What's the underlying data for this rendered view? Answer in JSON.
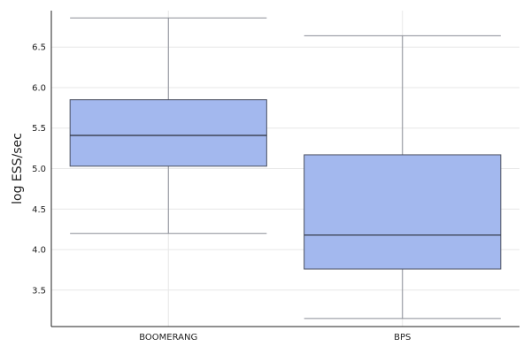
{
  "chart_data": {
    "type": "box",
    "ylabel": "log ESS/sec",
    "xlabel": "",
    "ylim": [
      3.05,
      6.95
    ],
    "yticks": [
      3.5,
      4.0,
      4.5,
      5.0,
      5.5,
      6.0,
      6.5
    ],
    "ytick_labels": [
      "3.5",
      "4.0",
      "4.5",
      "5.0",
      "5.5",
      "6.0",
      "6.5"
    ],
    "grid": true,
    "legend": "none",
    "categories": [
      "BOOMERANG",
      "BPS"
    ],
    "boxes": [
      {
        "category": "BOOMERANG",
        "whisker_low": 4.2,
        "q1": 5.03,
        "median": 5.41,
        "q3": 5.85,
        "whisker_high": 6.86
      },
      {
        "category": "BPS",
        "whisker_low": 3.15,
        "q1": 3.76,
        "median": 4.18,
        "q3": 5.17,
        "whisker_high": 6.64
      }
    ],
    "colors": {
      "box_fill": "#a3b8ee",
      "box_stroke": "#4a4f60",
      "median": "#2b2f3a",
      "whisker": "#8a8d96",
      "grid": "#e7e7e7",
      "axis": "#222222"
    }
  }
}
